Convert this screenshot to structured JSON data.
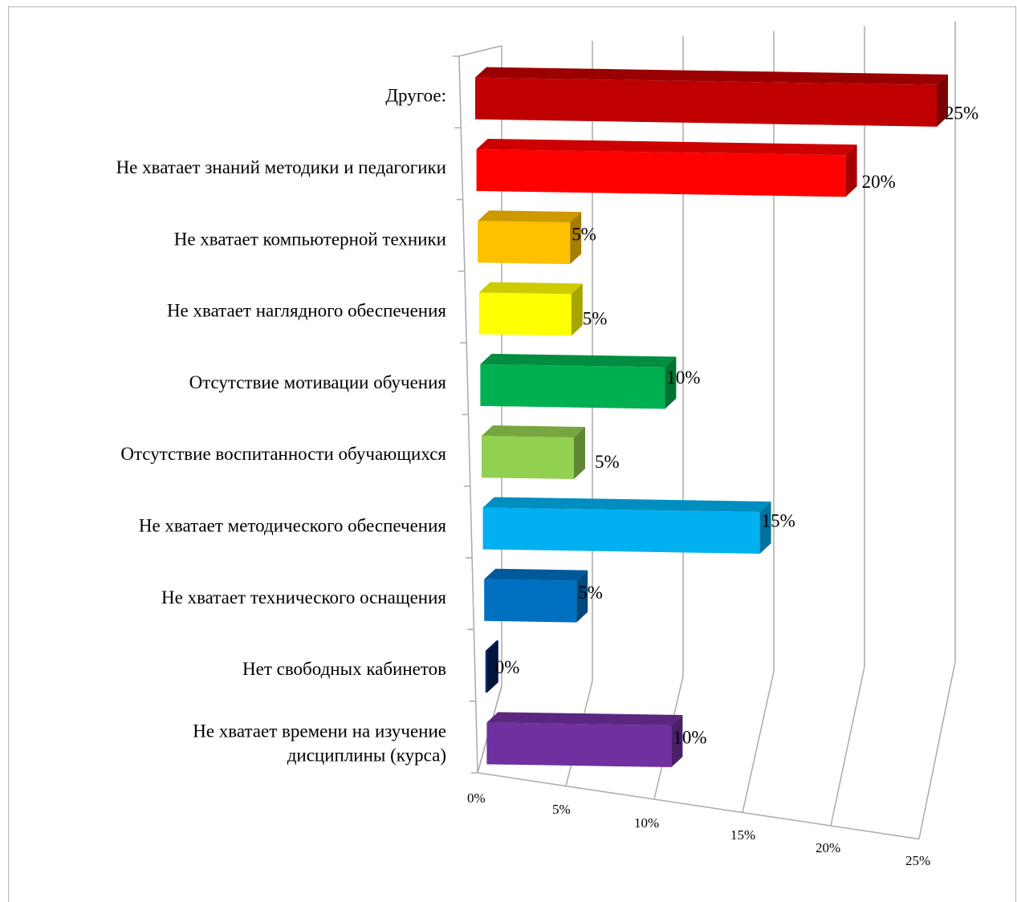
{
  "chart_data": {
    "type": "bar",
    "orientation": "horizontal",
    "style": "3d",
    "categories": [
      [
        "Другое:"
      ],
      [
        "Не хватает знаний методики и педагогики"
      ],
      [
        "Не хватает компьютерной техники"
      ],
      [
        "Не хватает наглядного обеспечения"
      ],
      [
        "Отсутствие мотивации обучения"
      ],
      [
        "Отсутствие воспитанности обучающихся"
      ],
      [
        "Не хватает методического обеспечения"
      ],
      [
        "Не хватает технического оснащения"
      ],
      [
        "Нет свободных кабинетов"
      ],
      [
        "Не хватает времени на изучение",
        "дисциплины (курса)"
      ]
    ],
    "values": [
      25,
      20,
      5,
      5,
      10,
      5,
      15,
      5,
      0,
      10
    ],
    "value_labels": [
      "25%",
      "20%",
      "5%",
      "5%",
      "10%",
      "5%",
      "15%",
      "5%",
      "0%",
      "10%"
    ],
    "colors": [
      "#c00000",
      "#ff0000",
      "#ffc000",
      "#ffff00",
      "#00b050",
      "#92d050",
      "#00b0f0",
      "#0070c0",
      "#002060",
      "#7030a0"
    ],
    "x_ticks": [
      "0%",
      "5%",
      "10%",
      "15%",
      "20%",
      "25%"
    ],
    "xlim": [
      0,
      25
    ],
    "grid": true,
    "legend": "none"
  }
}
